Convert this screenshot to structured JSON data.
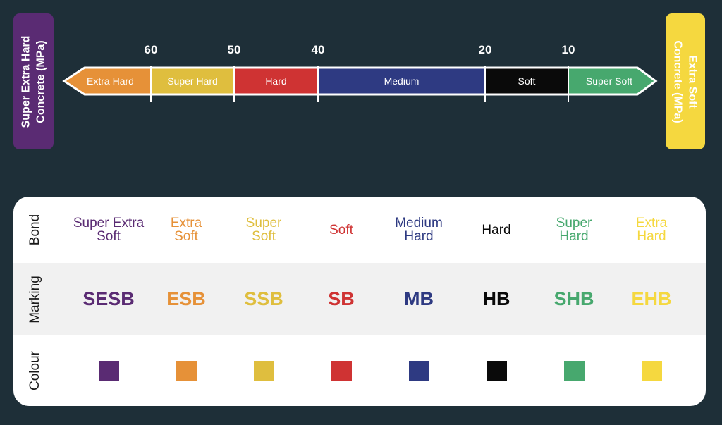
{
  "left_tag": {
    "line1": "Super Extra Hard",
    "line2": "Concrete (MPa)",
    "color": "#5a2b73"
  },
  "right_tag": {
    "line1": "Extra Soft",
    "line2": "Concrete (MPa)",
    "color": "#f5d83f"
  },
  "scale": {
    "ticks": [
      {
        "value": 60,
        "label": "60"
      },
      {
        "value": 50,
        "label": "50"
      },
      {
        "value": 40,
        "label": "40"
      },
      {
        "value": 20,
        "label": "20"
      },
      {
        "value": 10,
        "label": "10"
      }
    ],
    "segments": [
      {
        "label": "Extra Hard",
        "from": 70,
        "to": 60,
        "color": "#e69138"
      },
      {
        "label": "Super Hard",
        "from": 60,
        "to": 50,
        "color": "#dfbe3e"
      },
      {
        "label": "Hard",
        "from": 50,
        "to": 40,
        "color": "#cf3333"
      },
      {
        "label": "Medium",
        "from": 40,
        "to": 20,
        "color": "#2e3a82"
      },
      {
        "label": "Soft",
        "from": 20,
        "to": 10,
        "color": "#0a0a0a"
      },
      {
        "label": "Super Soft",
        "from": 10,
        "to": 0,
        "color": "#47a86e"
      }
    ]
  },
  "table": {
    "headers": {
      "bond": "Bond",
      "marking": "Marking",
      "colour": "Colour"
    },
    "columns": [
      {
        "bond_line1": "Super Extra",
        "bond_line2": "Soft",
        "marking": "SESB",
        "color": "#5a2b73"
      },
      {
        "bond_line1": "Extra",
        "bond_line2": "Soft",
        "marking": "ESB",
        "color": "#e69138"
      },
      {
        "bond_line1": "Super",
        "bond_line2": "Soft",
        "marking": "SSB",
        "color": "#dfbe3e"
      },
      {
        "bond_line1": "Soft",
        "bond_line2": "",
        "marking": "SB",
        "color": "#cf3333"
      },
      {
        "bond_line1": "Medium",
        "bond_line2": "Hard",
        "marking": "MB",
        "color": "#2e3a82"
      },
      {
        "bond_line1": "Hard",
        "bond_line2": "",
        "marking": "HB",
        "color": "#0a0a0a"
      },
      {
        "bond_line1": "Super",
        "bond_line2": "Hard",
        "marking": "SHB",
        "color": "#47a86e"
      },
      {
        "bond_line1": "Extra",
        "bond_line2": "Hard",
        "marking": "EHB",
        "color": "#f5d83f"
      }
    ]
  }
}
